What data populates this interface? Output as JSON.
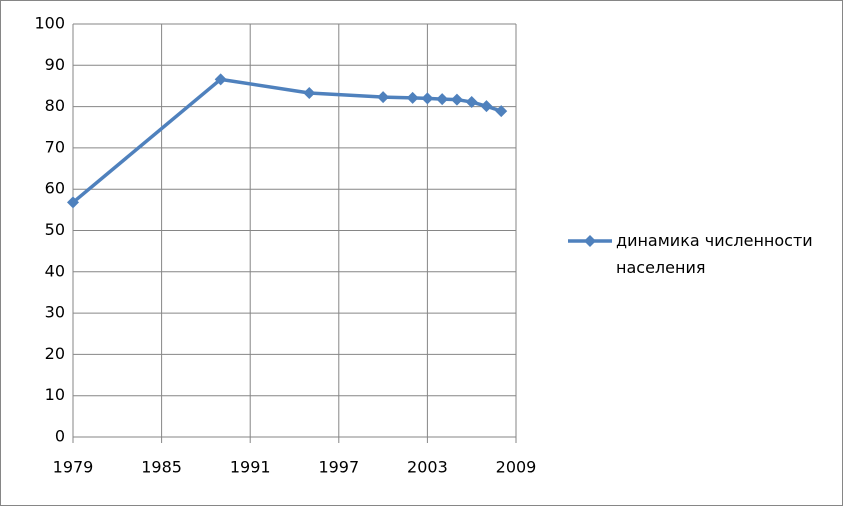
{
  "chart_data": {
    "type": "line",
    "x": [
      1979,
      1989,
      1995,
      2000,
      2002,
      2003,
      2004,
      2005,
      2006,
      2007,
      2008
    ],
    "series": [
      {
        "name": "динамика численности населения",
        "color": "#4f81bd",
        "values": [
          56.8,
          86.6,
          83.3,
          82.3,
          82.1,
          82.0,
          81.8,
          81.7,
          81.1,
          80.1,
          78.9
        ]
      }
    ],
    "xlim": [
      1979,
      2009
    ],
    "xticks": [
      1979,
      1985,
      1991,
      1997,
      2003,
      2009
    ],
    "ylim": [
      0,
      100
    ],
    "yticks": [
      0,
      10,
      20,
      30,
      40,
      50,
      60,
      70,
      80,
      90,
      100
    ],
    "grid": true,
    "legend": "right"
  }
}
